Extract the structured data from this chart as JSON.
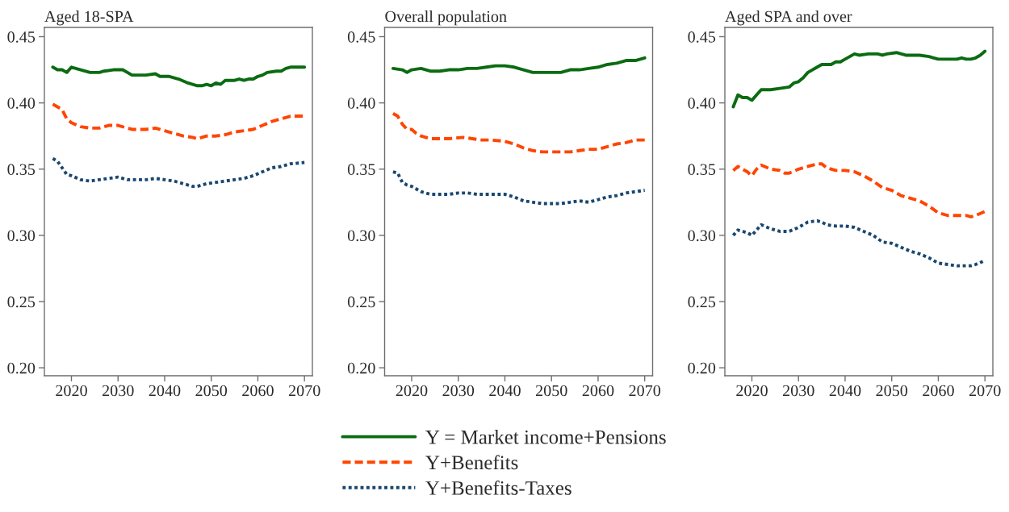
{
  "chart_data": [
    {
      "type": "line",
      "title": "Aged 18-SPA",
      "xlim": [
        2014.2,
        2071.7
      ],
      "ylim": [
        0.194,
        0.457
      ],
      "xticks": [
        2020,
        2030,
        2040,
        2050,
        2060,
        2070
      ],
      "yticks": [
        {
          "value": 0.2,
          "label": "0.20"
        },
        {
          "value": 0.25,
          "label": "0.25"
        },
        {
          "value": 0.3,
          "label": "0.30"
        },
        {
          "value": 0.35,
          "label": "0.35"
        },
        {
          "value": 0.4,
          "label": "0.40"
        },
        {
          "value": 0.45,
          "label": "0.45"
        }
      ],
      "series": [
        {
          "color": "#0b6b12",
          "line_style": "solid",
          "x": [
            2016,
            2017,
            2018,
            2019,
            2020,
            2022,
            2024,
            2026,
            2027,
            2029,
            2031,
            2033,
            2035,
            2036,
            2038,
            2039,
            2041,
            2043,
            2045,
            2046,
            2047,
            2048,
            2049,
            2050,
            2051,
            2052,
            2053,
            2055,
            2056,
            2057,
            2058,
            2059,
            2060,
            2061,
            2062,
            2064,
            2065,
            2066,
            2067,
            2070
          ],
          "values": [
            0.427,
            0.425,
            0.425,
            0.423,
            0.427,
            0.425,
            0.423,
            0.423,
            0.424,
            0.425,
            0.425,
            0.421,
            0.421,
            0.421,
            0.422,
            0.42,
            0.42,
            0.418,
            0.415,
            0.414,
            0.413,
            0.413,
            0.414,
            0.413,
            0.415,
            0.414,
            0.417,
            0.417,
            0.418,
            0.417,
            0.418,
            0.418,
            0.42,
            0.421,
            0.423,
            0.424,
            0.424,
            0.426,
            0.427,
            0.427
          ]
        },
        {
          "color": "#ff4500",
          "line_style": "dashed",
          "x": [
            2016,
            2017,
            2018,
            2019,
            2020,
            2022,
            2024,
            2026,
            2028,
            2030,
            2033,
            2036,
            2038,
            2040,
            2042,
            2044,
            2046,
            2047,
            2049,
            2051,
            2053,
            2055,
            2057,
            2059,
            2061,
            2063,
            2065,
            2067,
            2070
          ],
          "values": [
            0.399,
            0.397,
            0.395,
            0.388,
            0.385,
            0.382,
            0.381,
            0.381,
            0.383,
            0.383,
            0.38,
            0.38,
            0.381,
            0.379,
            0.377,
            0.375,
            0.374,
            0.373,
            0.375,
            0.375,
            0.376,
            0.378,
            0.379,
            0.38,
            0.383,
            0.386,
            0.388,
            0.39,
            0.39
          ]
        },
        {
          "color": "#1a476f",
          "line_style": "dotted",
          "x": [
            2016,
            2017,
            2018,
            2019,
            2020,
            2022,
            2024,
            2026,
            2028,
            2030,
            2032,
            2034,
            2036,
            2038,
            2040,
            2042,
            2044,
            2046,
            2047,
            2049,
            2051,
            2053,
            2055,
            2057,
            2059,
            2061,
            2063,
            2065,
            2067,
            2070
          ],
          "values": [
            0.358,
            0.356,
            0.351,
            0.346,
            0.345,
            0.342,
            0.341,
            0.342,
            0.343,
            0.344,
            0.342,
            0.342,
            0.342,
            0.343,
            0.342,
            0.341,
            0.339,
            0.337,
            0.337,
            0.339,
            0.34,
            0.341,
            0.342,
            0.343,
            0.345,
            0.348,
            0.351,
            0.352,
            0.354,
            0.355
          ]
        }
      ]
    },
    {
      "type": "line",
      "title": "Overall population",
      "legend": "bottom",
      "xlim": [
        2014.2,
        2071.7
      ],
      "ylim": [
        0.194,
        0.457
      ],
      "xticks": [
        2020,
        2030,
        2040,
        2050,
        2060,
        2070
      ],
      "yticks": [
        {
          "value": 0.2,
          "label": "0.20"
        },
        {
          "value": 0.25,
          "label": "0.25"
        },
        {
          "value": 0.3,
          "label": "0.30"
        },
        {
          "value": 0.35,
          "label": "0.35"
        },
        {
          "value": 0.4,
          "label": "0.40"
        },
        {
          "value": 0.45,
          "label": "0.45"
        }
      ],
      "series": [
        {
          "name": "Y = Market income+Pensions",
          "color": "#0b6b12",
          "line_style": "solid",
          "x": [
            2016,
            2018,
            2019,
            2020,
            2022,
            2024,
            2026,
            2028,
            2030,
            2032,
            2034,
            2036,
            2038,
            2040,
            2042,
            2044,
            2046,
            2048,
            2050,
            2052,
            2054,
            2056,
            2058,
            2060,
            2062,
            2064,
            2066,
            2068,
            2070
          ],
          "values": [
            0.426,
            0.425,
            0.423,
            0.425,
            0.426,
            0.424,
            0.424,
            0.425,
            0.425,
            0.426,
            0.426,
            0.427,
            0.428,
            0.428,
            0.427,
            0.425,
            0.423,
            0.423,
            0.423,
            0.423,
            0.425,
            0.425,
            0.426,
            0.427,
            0.429,
            0.43,
            0.432,
            0.432,
            0.434
          ]
        },
        {
          "name": "Y+Benefits",
          "color": "#ff4500",
          "line_style": "dashed",
          "x": [
            2016,
            2017,
            2018,
            2019,
            2020,
            2021,
            2022,
            2024,
            2026,
            2028,
            2031,
            2033,
            2035,
            2037,
            2040,
            2042,
            2044,
            2046,
            2048,
            2050,
            2052,
            2054,
            2056,
            2058,
            2060,
            2062,
            2064,
            2066,
            2068,
            2070
          ],
          "values": [
            0.392,
            0.39,
            0.384,
            0.38,
            0.38,
            0.377,
            0.375,
            0.373,
            0.373,
            0.373,
            0.374,
            0.373,
            0.372,
            0.372,
            0.371,
            0.369,
            0.366,
            0.364,
            0.363,
            0.363,
            0.363,
            0.363,
            0.364,
            0.365,
            0.365,
            0.367,
            0.369,
            0.37,
            0.372,
            0.372
          ]
        },
        {
          "name": "Y+Benefits-Taxes",
          "color": "#1a476f",
          "line_style": "dotted",
          "x": [
            2016,
            2017,
            2018,
            2019,
            2020,
            2022,
            2024,
            2026,
            2028,
            2030,
            2032,
            2034,
            2036,
            2038,
            2040,
            2042,
            2044,
            2046,
            2048,
            2050,
            2052,
            2054,
            2056,
            2058,
            2060,
            2062,
            2064,
            2066,
            2068,
            2070
          ],
          "values": [
            0.348,
            0.347,
            0.34,
            0.338,
            0.337,
            0.333,
            0.331,
            0.331,
            0.331,
            0.332,
            0.332,
            0.331,
            0.331,
            0.331,
            0.331,
            0.329,
            0.326,
            0.325,
            0.324,
            0.324,
            0.324,
            0.325,
            0.326,
            0.325,
            0.327,
            0.329,
            0.33,
            0.332,
            0.333,
            0.334
          ]
        }
      ]
    },
    {
      "type": "line",
      "title": "Aged SPA and over",
      "xlim": [
        2014.2,
        2071.7
      ],
      "ylim": [
        0.194,
        0.457
      ],
      "xticks": [
        2020,
        2030,
        2040,
        2050,
        2060,
        2070
      ],
      "yticks": [
        {
          "value": 0.2,
          "label": "0.20"
        },
        {
          "value": 0.25,
          "label": "0.25"
        },
        {
          "value": 0.3,
          "label": "0.30"
        },
        {
          "value": 0.35,
          "label": "0.35"
        },
        {
          "value": 0.4,
          "label": "0.40"
        },
        {
          "value": 0.45,
          "label": "0.45"
        }
      ],
      "series": [
        {
          "color": "#0b6b12",
          "line_style": "solid",
          "x": [
            2016,
            2017,
            2018,
            2019,
            2020,
            2021,
            2022,
            2023,
            2024,
            2026,
            2028,
            2029,
            2030,
            2031,
            2032,
            2034,
            2035,
            2036,
            2037,
            2038,
            2039,
            2040,
            2041,
            2042,
            2043,
            2045,
            2047,
            2048,
            2049,
            2051,
            2053,
            2055,
            2056,
            2058,
            2059,
            2060,
            2062,
            2064,
            2065,
            2066,
            2067,
            2068,
            2069,
            2070
          ],
          "values": [
            0.397,
            0.406,
            0.404,
            0.404,
            0.402,
            0.406,
            0.41,
            0.41,
            0.41,
            0.411,
            0.412,
            0.415,
            0.416,
            0.419,
            0.423,
            0.427,
            0.429,
            0.429,
            0.429,
            0.431,
            0.431,
            0.433,
            0.435,
            0.437,
            0.436,
            0.437,
            0.437,
            0.436,
            0.437,
            0.438,
            0.436,
            0.436,
            0.436,
            0.435,
            0.434,
            0.433,
            0.433,
            0.433,
            0.434,
            0.433,
            0.433,
            0.434,
            0.436,
            0.439
          ]
        },
        {
          "color": "#ff4500",
          "line_style": "dashed",
          "x": [
            2016,
            2017,
            2018,
            2019,
            2020,
            2021,
            2022,
            2024,
            2026,
            2027,
            2028,
            2030,
            2032,
            2034,
            2035,
            2036,
            2038,
            2040,
            2042,
            2044,
            2046,
            2048,
            2050,
            2052,
            2054,
            2056,
            2058,
            2060,
            2062,
            2064,
            2066,
            2067,
            2068,
            2070
          ],
          "values": [
            0.349,
            0.352,
            0.35,
            0.348,
            0.345,
            0.35,
            0.353,
            0.35,
            0.349,
            0.347,
            0.347,
            0.35,
            0.352,
            0.354,
            0.354,
            0.351,
            0.349,
            0.349,
            0.348,
            0.345,
            0.341,
            0.336,
            0.334,
            0.33,
            0.328,
            0.326,
            0.322,
            0.317,
            0.315,
            0.315,
            0.315,
            0.314,
            0.315,
            0.318
          ]
        },
        {
          "color": "#1a476f",
          "line_style": "dotted",
          "x": [
            2016,
            2017,
            2018,
            2019,
            2020,
            2021,
            2022,
            2024,
            2026,
            2028,
            2030,
            2032,
            2034,
            2035,
            2036,
            2038,
            2040,
            2042,
            2044,
            2046,
            2048,
            2050,
            2052,
            2054,
            2056,
            2058,
            2060,
            2062,
            2064,
            2066,
            2067,
            2068,
            2070
          ],
          "values": [
            0.3,
            0.304,
            0.303,
            0.302,
            0.3,
            0.304,
            0.308,
            0.305,
            0.303,
            0.303,
            0.306,
            0.31,
            0.311,
            0.31,
            0.308,
            0.307,
            0.307,
            0.306,
            0.303,
            0.3,
            0.295,
            0.294,
            0.291,
            0.288,
            0.286,
            0.283,
            0.279,
            0.278,
            0.277,
            0.277,
            0.277,
            0.278,
            0.281
          ]
        }
      ]
    }
  ]
}
